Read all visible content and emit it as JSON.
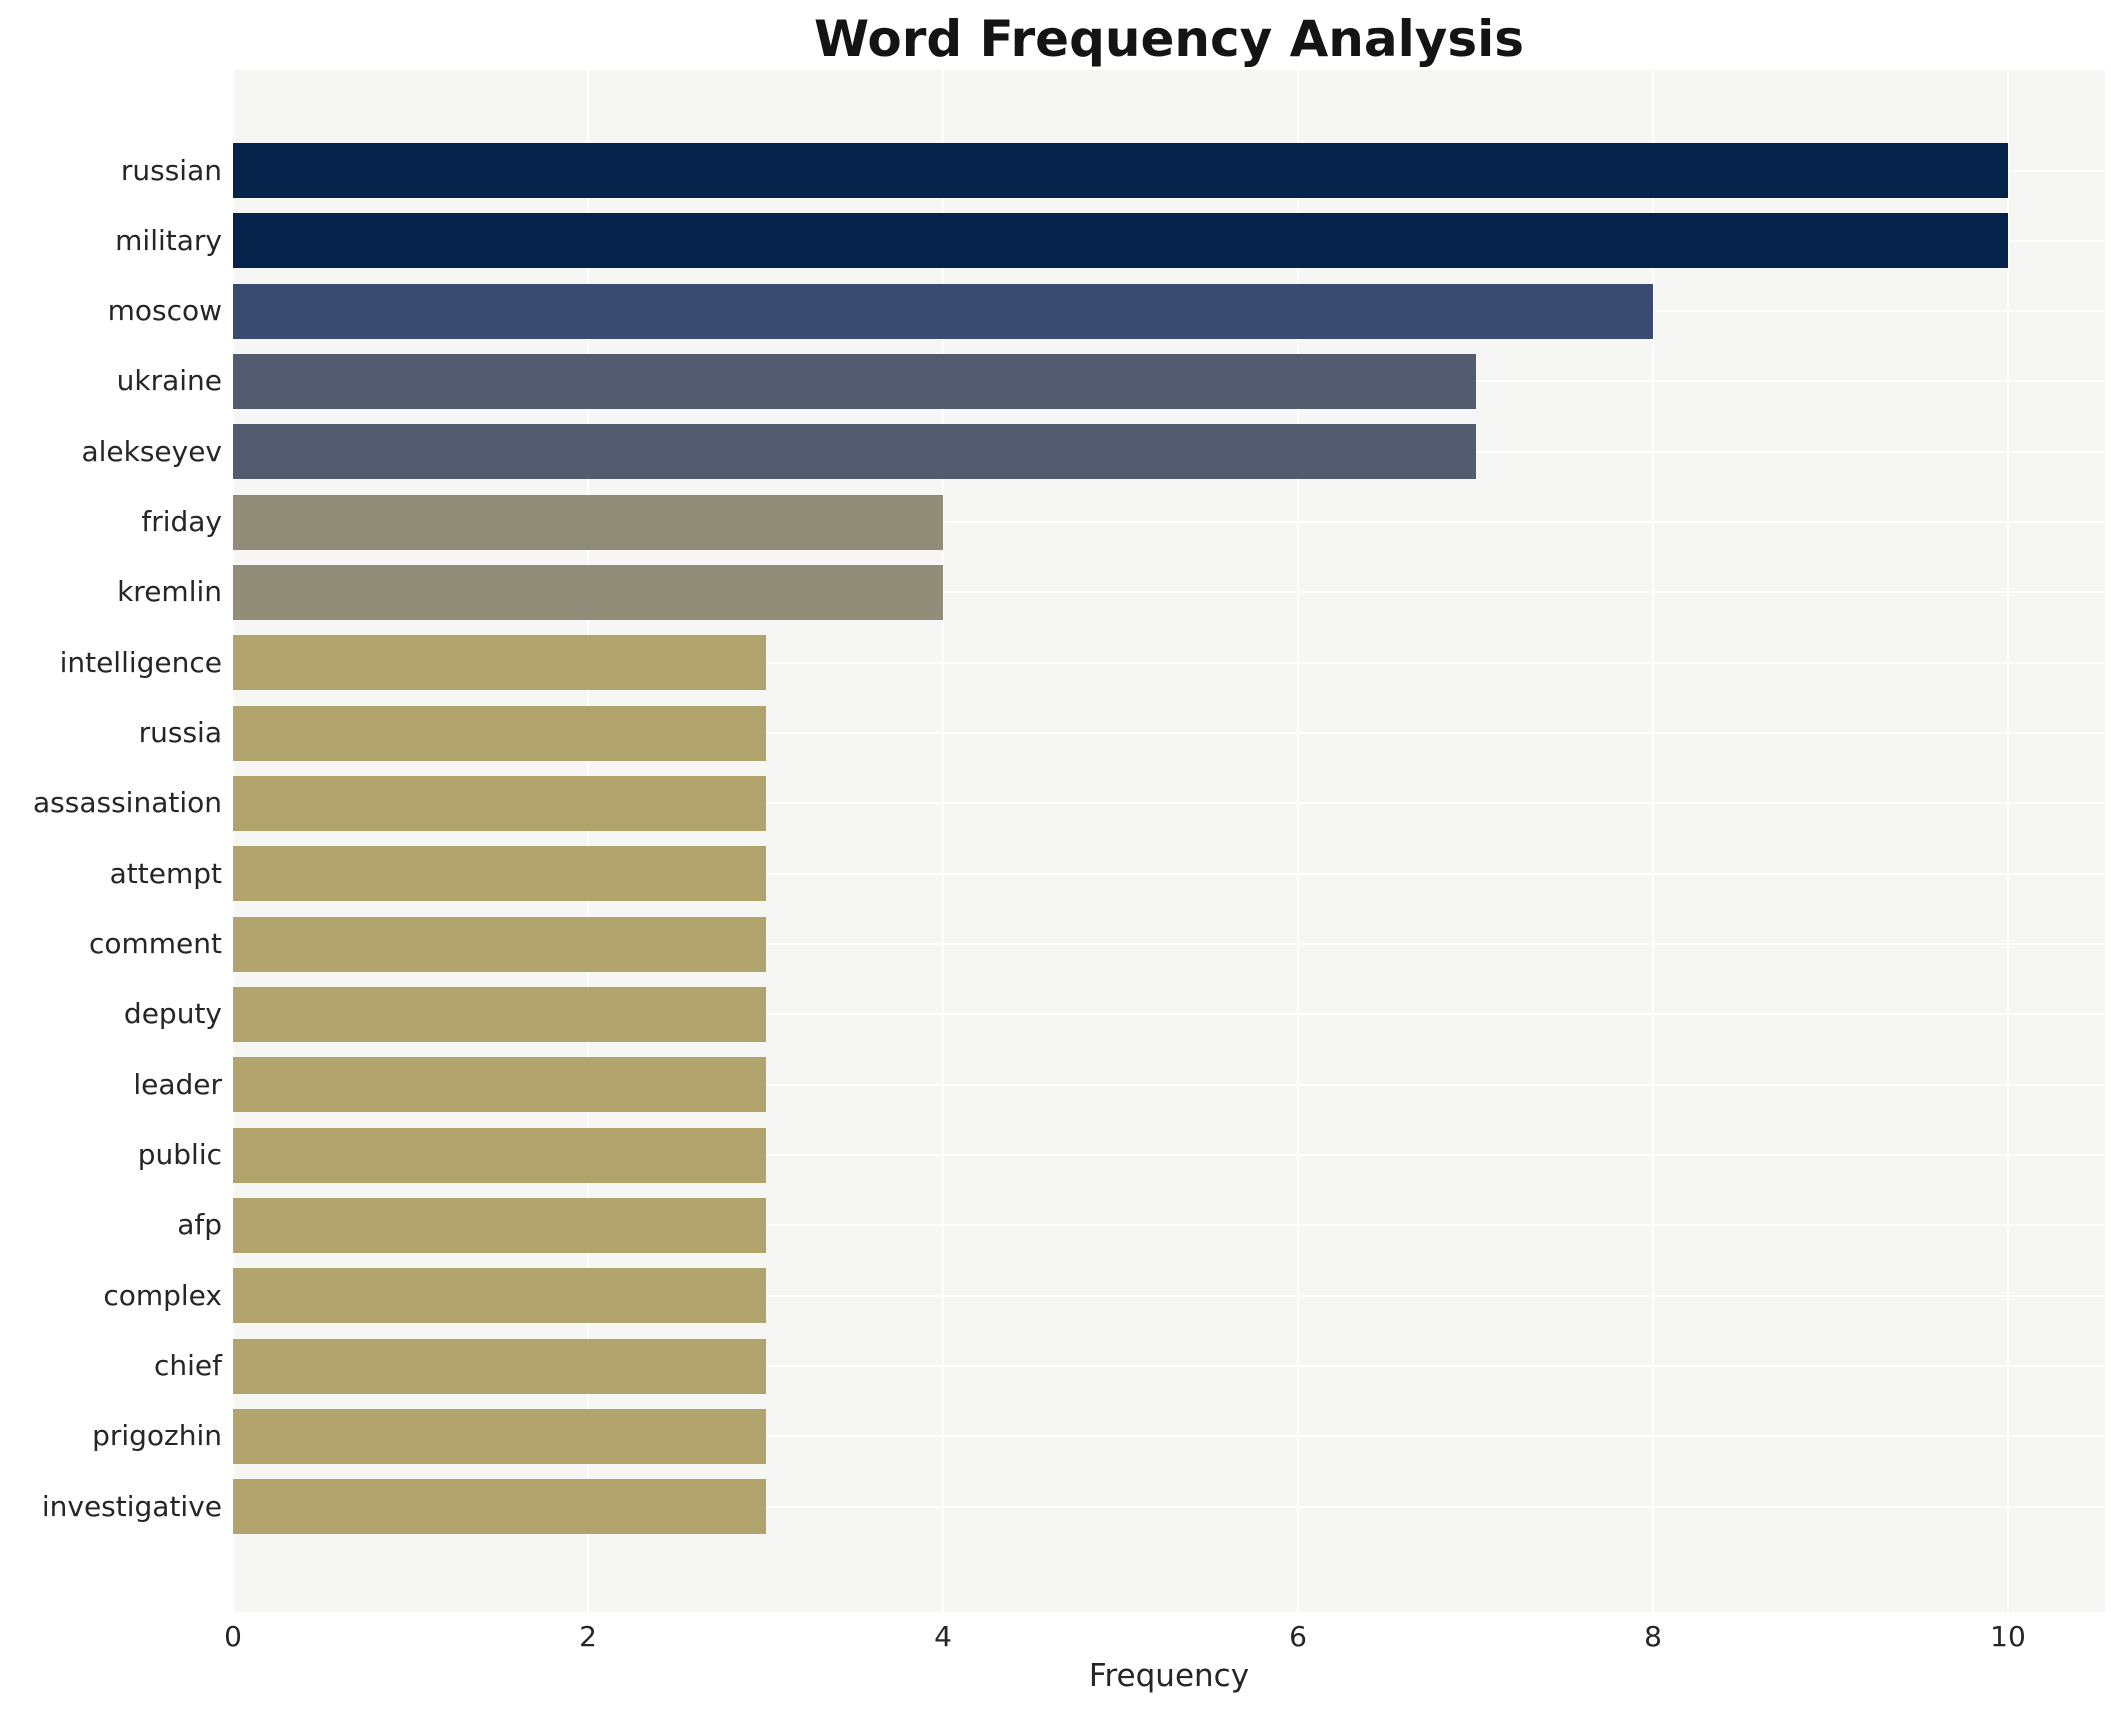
{
  "chart_data": {
    "type": "bar",
    "orientation": "horizontal",
    "title": "Word Frequency Analysis",
    "xlabel": "Frequency",
    "ylabel": "",
    "categories": [
      "russian",
      "military",
      "moscow",
      "ukraine",
      "alekseyev",
      "friday",
      "kremlin",
      "intelligence",
      "russia",
      "assassination",
      "attempt",
      "comment",
      "deputy",
      "leader",
      "public",
      "afp",
      "complex",
      "chief",
      "prigozhin",
      "investigative"
    ],
    "values": [
      10,
      10,
      8,
      7,
      7,
      4,
      4,
      3,
      3,
      3,
      3,
      3,
      3,
      3,
      3,
      3,
      3,
      3,
      3,
      3
    ],
    "xticks": [
      0,
      2,
      4,
      6,
      8,
      10
    ],
    "xlim": [
      0,
      10.55
    ],
    "grid": true,
    "legend": false,
    "colors_by_value": {
      "10": "#04224a",
      "8": "#3a4a71",
      "7": "#535c6f",
      "4": "#918c77",
      "3": "#b0a46c"
    },
    "plot_background": "#f6f6f4",
    "grid_color": "#ffffff",
    "text_color": "#262626",
    "title_color": "#141414"
  }
}
